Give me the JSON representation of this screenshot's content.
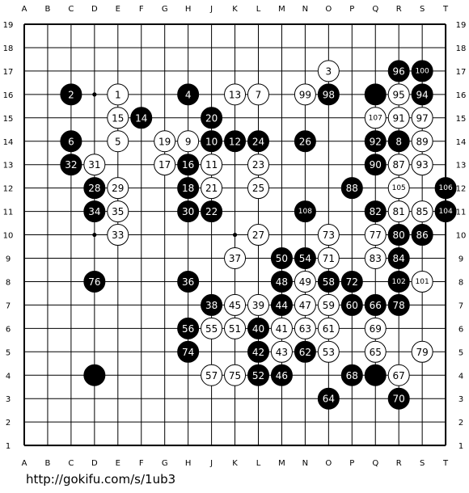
{
  "board": {
    "size": 19,
    "columns": [
      "A",
      "B",
      "C",
      "D",
      "E",
      "F",
      "G",
      "H",
      "J",
      "K",
      "L",
      "M",
      "N",
      "O",
      "P",
      "Q",
      "R",
      "S",
      "T"
    ],
    "rows": [
      19,
      18,
      17,
      16,
      15,
      14,
      13,
      12,
      11,
      10,
      9,
      8,
      7,
      6,
      5,
      4,
      3,
      2,
      1
    ],
    "star_points": [
      "D16",
      "K10",
      "D10"
    ],
    "colors": {
      "black": "#000000",
      "white": "#ffffff",
      "line": "#000000",
      "background": "#ffffff"
    }
  },
  "stones": [
    {
      "c": "D4",
      "color": "black",
      "n": ""
    },
    {
      "c": "Q4",
      "color": "black",
      "n": ""
    },
    {
      "c": "Q16",
      "color": "black",
      "n": ""
    },
    {
      "c": "E16",
      "color": "white",
      "n": "1"
    },
    {
      "c": "C16",
      "color": "black",
      "n": "2"
    },
    {
      "c": "O17",
      "color": "white",
      "n": "3"
    },
    {
      "c": "H16",
      "color": "black",
      "n": "4"
    },
    {
      "c": "E14",
      "color": "white",
      "n": "5"
    },
    {
      "c": "C14",
      "color": "black",
      "n": "6"
    },
    {
      "c": "L16",
      "color": "white",
      "n": "7"
    },
    {
      "c": "R14",
      "color": "black",
      "n": "8"
    },
    {
      "c": "H14",
      "color": "white",
      "n": "9"
    },
    {
      "c": "J14",
      "color": "black",
      "n": "10"
    },
    {
      "c": "J13",
      "color": "white",
      "n": "11"
    },
    {
      "c": "K14",
      "color": "black",
      "n": "12"
    },
    {
      "c": "K16",
      "color": "white",
      "n": "13"
    },
    {
      "c": "F15",
      "color": "black",
      "n": "14"
    },
    {
      "c": "E15",
      "color": "white",
      "n": "15"
    },
    {
      "c": "H13",
      "color": "black",
      "n": "16"
    },
    {
      "c": "G13",
      "color": "white",
      "n": "17"
    },
    {
      "c": "H12",
      "color": "black",
      "n": "18"
    },
    {
      "c": "G14",
      "color": "white",
      "n": "19"
    },
    {
      "c": "J15",
      "color": "black",
      "n": "20"
    },
    {
      "c": "J12",
      "color": "white",
      "n": "21"
    },
    {
      "c": "J11",
      "color": "black",
      "n": "22"
    },
    {
      "c": "L13",
      "color": "white",
      "n": "23"
    },
    {
      "c": "L14",
      "color": "black",
      "n": "24"
    },
    {
      "c": "L12",
      "color": "white",
      "n": "25"
    },
    {
      "c": "N14",
      "color": "black",
      "n": "26"
    },
    {
      "c": "L10",
      "color": "white",
      "n": "27"
    },
    {
      "c": "D12",
      "color": "black",
      "n": "28"
    },
    {
      "c": "E12",
      "color": "white",
      "n": "29"
    },
    {
      "c": "H11",
      "color": "black",
      "n": "30"
    },
    {
      "c": "D13",
      "color": "white",
      "n": "31"
    },
    {
      "c": "C13",
      "color": "black",
      "n": "32"
    },
    {
      "c": "E10",
      "color": "white",
      "n": "33"
    },
    {
      "c": "D11",
      "color": "black",
      "n": "34"
    },
    {
      "c": "E11",
      "color": "white",
      "n": "35"
    },
    {
      "c": "H8",
      "color": "black",
      "n": "36"
    },
    {
      "c": "K9",
      "color": "white",
      "n": "37"
    },
    {
      "c": "J7",
      "color": "black",
      "n": "38"
    },
    {
      "c": "L7",
      "color": "white",
      "n": "39"
    },
    {
      "c": "L6",
      "color": "black",
      "n": "40"
    },
    {
      "c": "M6",
      "color": "white",
      "n": "41"
    },
    {
      "c": "L5",
      "color": "black",
      "n": "42"
    },
    {
      "c": "M5",
      "color": "white",
      "n": "43"
    },
    {
      "c": "M7",
      "color": "black",
      "n": "44"
    },
    {
      "c": "K7",
      "color": "white",
      "n": "45"
    },
    {
      "c": "M4",
      "color": "black",
      "n": "46"
    },
    {
      "c": "N7",
      "color": "white",
      "n": "47"
    },
    {
      "c": "M8",
      "color": "black",
      "n": "48"
    },
    {
      "c": "N8",
      "color": "white",
      "n": "49"
    },
    {
      "c": "M9",
      "color": "black",
      "n": "50"
    },
    {
      "c": "K6",
      "color": "white",
      "n": "51"
    },
    {
      "c": "L4",
      "color": "black",
      "n": "52"
    },
    {
      "c": "O5",
      "color": "white",
      "n": "53"
    },
    {
      "c": "N9",
      "color": "black",
      "n": "54"
    },
    {
      "c": "J6",
      "color": "white",
      "n": "55"
    },
    {
      "c": "H6",
      "color": "black",
      "n": "56"
    },
    {
      "c": "J4",
      "color": "white",
      "n": "57"
    },
    {
      "c": "O8",
      "color": "black",
      "n": "58"
    },
    {
      "c": "O7",
      "color": "white",
      "n": "59"
    },
    {
      "c": "P7",
      "color": "black",
      "n": "60"
    },
    {
      "c": "O6",
      "color": "white",
      "n": "61"
    },
    {
      "c": "N5",
      "color": "black",
      "n": "62"
    },
    {
      "c": "N6",
      "color": "white",
      "n": "63"
    },
    {
      "c": "O3",
      "color": "black",
      "n": "64"
    },
    {
      "c": "Q5",
      "color": "white",
      "n": "65"
    },
    {
      "c": "Q7",
      "color": "black",
      "n": "66"
    },
    {
      "c": "R4",
      "color": "white",
      "n": "67"
    },
    {
      "c": "P4",
      "color": "black",
      "n": "68"
    },
    {
      "c": "Q6",
      "color": "white",
      "n": "69"
    },
    {
      "c": "R3",
      "color": "black",
      "n": "70"
    },
    {
      "c": "O9",
      "color": "white",
      "n": "71"
    },
    {
      "c": "P8",
      "color": "black",
      "n": "72"
    },
    {
      "c": "O10",
      "color": "white",
      "n": "73"
    },
    {
      "c": "H5",
      "color": "black",
      "n": "74"
    },
    {
      "c": "K4",
      "color": "white",
      "n": "75"
    },
    {
      "c": "D8",
      "color": "black",
      "n": "76"
    },
    {
      "c": "Q10",
      "color": "white",
      "n": "77"
    },
    {
      "c": "R7",
      "color": "black",
      "n": "78"
    },
    {
      "c": "S5",
      "color": "white",
      "n": "79"
    },
    {
      "c": "R10",
      "color": "black",
      "n": "80"
    },
    {
      "c": "R11",
      "color": "white",
      "n": "81"
    },
    {
      "c": "Q11",
      "color": "black",
      "n": "82"
    },
    {
      "c": "Q9",
      "color": "white",
      "n": "83"
    },
    {
      "c": "R9",
      "color": "black",
      "n": "84"
    },
    {
      "c": "S11",
      "color": "white",
      "n": "85"
    },
    {
      "c": "S10",
      "color": "black",
      "n": "86"
    },
    {
      "c": "R13",
      "color": "white",
      "n": "87"
    },
    {
      "c": "P12",
      "color": "black",
      "n": "88"
    },
    {
      "c": "S14",
      "color": "white",
      "n": "89"
    },
    {
      "c": "Q13",
      "color": "black",
      "n": "90"
    },
    {
      "c": "R15",
      "color": "white",
      "n": "91"
    },
    {
      "c": "Q14",
      "color": "black",
      "n": "92"
    },
    {
      "c": "S13",
      "color": "white",
      "n": "93"
    },
    {
      "c": "S16",
      "color": "black",
      "n": "94"
    },
    {
      "c": "R16",
      "color": "white",
      "n": "95"
    },
    {
      "c": "R17",
      "color": "black",
      "n": "96"
    },
    {
      "c": "S15",
      "color": "white",
      "n": "97"
    },
    {
      "c": "O16",
      "color": "black",
      "n": "98"
    },
    {
      "c": "N16",
      "color": "white",
      "n": "99"
    },
    {
      "c": "S17",
      "color": "black",
      "n": "100"
    },
    {
      "c": "S8",
      "color": "white",
      "n": "101"
    },
    {
      "c": "R8",
      "color": "black",
      "n": "102"
    },
    {
      "c": "T11",
      "color": "black",
      "n": "104"
    },
    {
      "c": "R12",
      "color": "white",
      "n": "105"
    },
    {
      "c": "T12",
      "color": "black",
      "n": "106"
    },
    {
      "c": "Q15",
      "color": "white",
      "n": "107"
    },
    {
      "c": "N11",
      "color": "black",
      "n": "108"
    }
  ],
  "footer": {
    "url": "http://gokifu.com/s/1ub3"
  }
}
